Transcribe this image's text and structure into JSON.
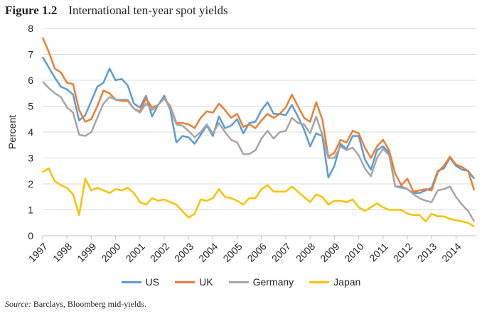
{
  "figure_label": "Figure 1.2",
  "figure_title": "International ten-year spot yields",
  "source_label": "Source:",
  "source_text": "Barclays, Bloomberg mid-yields.",
  "chart_data": {
    "type": "line",
    "title": "International ten-year spot yields",
    "xlabel": "",
    "ylabel": "Percent",
    "ylim": [
      0,
      8
    ],
    "yticks": [
      0,
      1,
      2,
      3,
      4,
      5,
      6,
      7,
      8
    ],
    "xticks": [
      "1997",
      "1998",
      "1999",
      "2000",
      "2001",
      "2002",
      "2003",
      "2004",
      "2005",
      "2006",
      "2007",
      "2008",
      "2009",
      "2010",
      "2011",
      "2012",
      "2013",
      "2014"
    ],
    "x_start": 1997,
    "x_frequency": "quarterly",
    "grid": true,
    "legend_position": "bottom",
    "series": [
      {
        "name": "US",
        "color": "#5b9bd5",
        "values": [
          6.9,
          6.5,
          6.1,
          5.75,
          5.65,
          5.45,
          4.45,
          4.65,
          5.2,
          5.75,
          5.9,
          6.45,
          6.0,
          6.05,
          5.8,
          5.1,
          4.95,
          5.4,
          4.6,
          5.05,
          5.4,
          4.85,
          3.6,
          3.85,
          3.8,
          3.55,
          3.9,
          4.25,
          3.85,
          4.6,
          4.15,
          4.25,
          4.5,
          3.95,
          4.35,
          4.4,
          4.85,
          5.15,
          4.7,
          4.7,
          4.65,
          5.05,
          4.6,
          4.1,
          3.45,
          3.95,
          3.85,
          2.25,
          2.7,
          3.55,
          3.35,
          3.85,
          3.85,
          2.95,
          2.55,
          3.3,
          3.45,
          3.2,
          1.9,
          1.9,
          1.8,
          1.65,
          1.65,
          1.75,
          1.85,
          2.5,
          2.6,
          3.0,
          2.7,
          2.55,
          2.5,
          2.2
        ]
      },
      {
        "name": "UK",
        "color": "#ed7d31",
        "values": [
          7.65,
          7.1,
          6.45,
          6.3,
          5.9,
          5.85,
          4.85,
          4.4,
          4.5,
          5.0,
          5.6,
          5.5,
          5.25,
          5.2,
          5.2,
          4.9,
          4.8,
          5.3,
          4.95,
          5.05,
          5.3,
          5.0,
          4.35,
          4.35,
          4.3,
          4.15,
          4.55,
          4.8,
          4.75,
          5.1,
          4.85,
          4.55,
          4.7,
          4.2,
          4.3,
          4.15,
          4.45,
          4.7,
          4.55,
          4.7,
          4.95,
          5.45,
          5.0,
          4.55,
          4.4,
          5.15,
          4.5,
          3.05,
          3.2,
          3.7,
          3.6,
          4.05,
          3.95,
          3.4,
          3.0,
          3.45,
          3.7,
          3.3,
          2.4,
          1.95,
          2.2,
          1.7,
          1.75,
          1.8,
          1.75,
          2.45,
          2.7,
          3.05,
          2.75,
          2.65,
          2.5,
          1.75
        ]
      },
      {
        "name": "Germany",
        "color": "#a5a5a5",
        "values": [
          5.95,
          5.7,
          5.5,
          5.35,
          4.95,
          4.75,
          3.9,
          3.85,
          4.0,
          4.55,
          5.1,
          5.35,
          5.25,
          5.25,
          5.25,
          4.9,
          4.75,
          5.1,
          4.85,
          5.05,
          5.3,
          4.95,
          4.3,
          4.25,
          4.05,
          3.8,
          4.0,
          4.3,
          3.95,
          4.35,
          4.0,
          3.7,
          3.6,
          3.15,
          3.15,
          3.3,
          3.75,
          4.05,
          3.75,
          4.0,
          4.05,
          4.55,
          4.35,
          4.3,
          3.95,
          4.6,
          3.9,
          3.0,
          3.0,
          3.45,
          3.3,
          3.4,
          3.1,
          2.6,
          2.3,
          3.0,
          3.35,
          3.1,
          1.9,
          1.85,
          1.8,
          1.6,
          1.45,
          1.35,
          1.3,
          1.75,
          1.8,
          1.9,
          1.5,
          1.2,
          0.95,
          0.55
        ]
      },
      {
        "name": "Japan",
        "color": "#ffc000",
        "values": [
          2.45,
          2.6,
          2.1,
          1.95,
          1.85,
          1.6,
          0.8,
          2.2,
          1.75,
          1.85,
          1.75,
          1.65,
          1.8,
          1.75,
          1.85,
          1.65,
          1.3,
          1.2,
          1.45,
          1.35,
          1.4,
          1.3,
          1.2,
          0.95,
          0.7,
          0.85,
          1.4,
          1.35,
          1.45,
          1.8,
          1.5,
          1.45,
          1.35,
          1.2,
          1.45,
          1.45,
          1.8,
          1.95,
          1.7,
          1.7,
          1.7,
          1.9,
          1.7,
          1.5,
          1.3,
          1.6,
          1.5,
          1.2,
          1.35,
          1.35,
          1.3,
          1.4,
          1.1,
          0.95,
          1.1,
          1.25,
          1.1,
          1.0,
          1.0,
          1.0,
          0.85,
          0.8,
          0.8,
          0.55,
          0.85,
          0.75,
          0.75,
          0.65,
          0.6,
          0.55,
          0.5,
          0.35
        ]
      }
    ]
  }
}
